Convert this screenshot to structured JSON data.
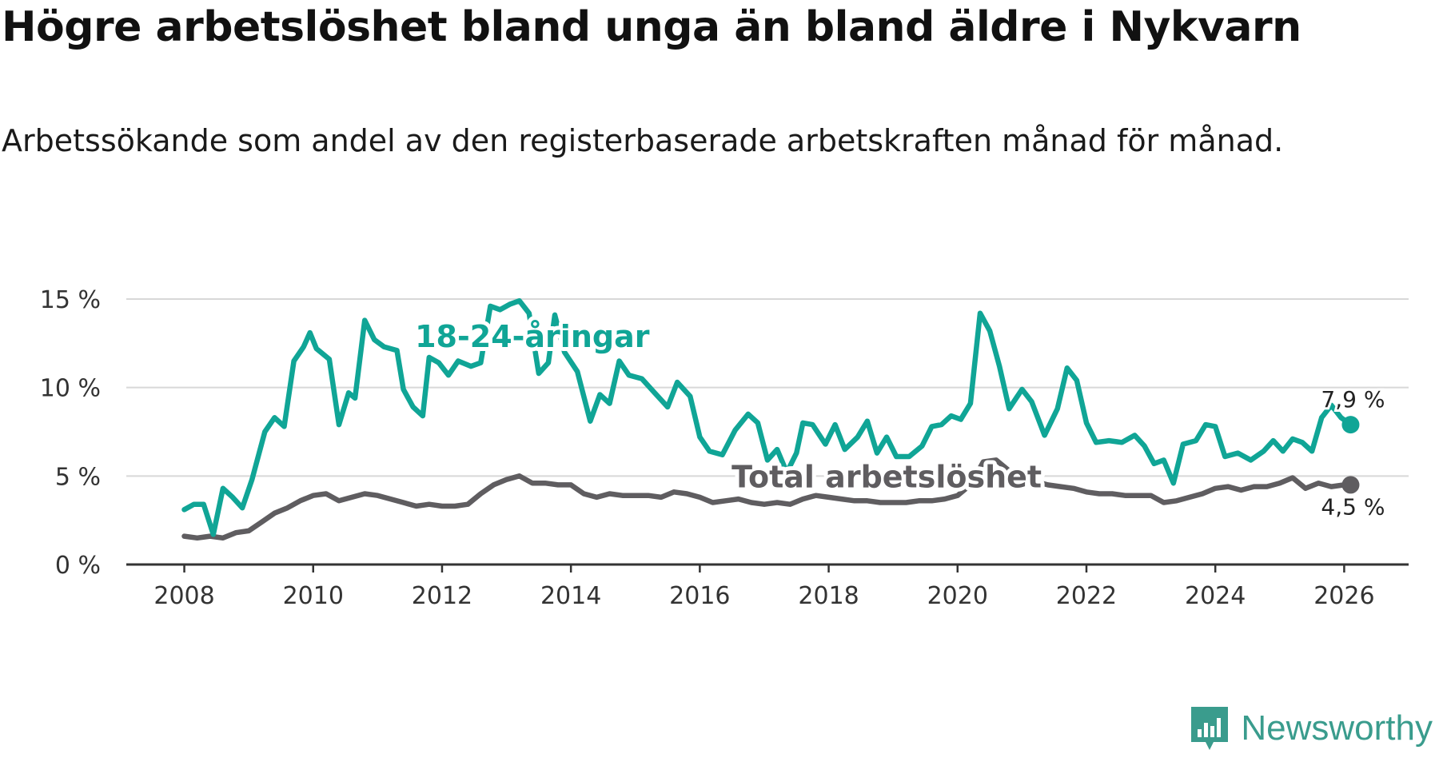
{
  "title": "Högre arbetslöshet bland unga än bland äldre i Nykvarn",
  "subtitle": "Arbetssökande som andel av den registerbaserade arbetskraften månad för månad.",
  "brand": {
    "name": "Newsworthy",
    "icon": "newsworthy-logo-icon",
    "color": "#3a9c8d"
  },
  "chart_data": {
    "type": "line",
    "title": "Högre arbetslöshet bland unga än bland äldre i Nykvarn",
    "xlabel": "",
    "ylabel": "",
    "xlim": [
      2007.1,
      2027.0
    ],
    "ylim": [
      0,
      15
    ],
    "grid": true,
    "x_ticks": [
      2008,
      2010,
      2012,
      2014,
      2016,
      2018,
      2020,
      2022,
      2024,
      2026
    ],
    "x_tick_labels": [
      "2008",
      "2010",
      "2012",
      "2014",
      "2016",
      "2018",
      "2020",
      "2022",
      "2024",
      "2026"
    ],
    "y_ticks": [
      0,
      5,
      10,
      15
    ],
    "y_tick_labels": [
      "0 %",
      "5 %",
      "10 %",
      "15 %"
    ],
    "series": [
      {
        "name": "18-24-åringar",
        "color": "#10a596",
        "label_at": [
          2013.4,
          12.3
        ],
        "end_label": "7,9 %",
        "points": [
          [
            2008.0,
            3.1
          ],
          [
            2008.15,
            3.4
          ],
          [
            2008.3,
            3.4
          ],
          [
            2008.45,
            1.7
          ],
          [
            2008.6,
            4.3
          ],
          [
            2008.75,
            3.8
          ],
          [
            2008.9,
            3.2
          ],
          [
            2009.05,
            4.8
          ],
          [
            2009.25,
            7.5
          ],
          [
            2009.4,
            8.3
          ],
          [
            2009.55,
            7.8
          ],
          [
            2009.7,
            11.5
          ],
          [
            2009.85,
            12.3
          ],
          [
            2009.95,
            13.1
          ],
          [
            2010.05,
            12.2
          ],
          [
            2010.25,
            11.6
          ],
          [
            2010.4,
            7.9
          ],
          [
            2010.55,
            9.7
          ],
          [
            2010.65,
            9.4
          ],
          [
            2010.8,
            13.8
          ],
          [
            2010.95,
            12.7
          ],
          [
            2011.1,
            12.3
          ],
          [
            2011.3,
            12.1
          ],
          [
            2011.4,
            9.9
          ],
          [
            2011.55,
            8.9
          ],
          [
            2011.7,
            8.4
          ],
          [
            2011.8,
            11.7
          ],
          [
            2011.95,
            11.4
          ],
          [
            2012.1,
            10.7
          ],
          [
            2012.25,
            11.5
          ],
          [
            2012.45,
            11.2
          ],
          [
            2012.6,
            11.4
          ],
          [
            2012.75,
            14.6
          ],
          [
            2012.9,
            14.4
          ],
          [
            2013.05,
            14.7
          ],
          [
            2013.2,
            14.9
          ],
          [
            2013.35,
            14.2
          ],
          [
            2013.5,
            10.8
          ],
          [
            2013.65,
            11.4
          ],
          [
            2013.75,
            14.1
          ],
          [
            2013.9,
            12.0
          ],
          [
            2014.1,
            10.9
          ],
          [
            2014.3,
            8.1
          ],
          [
            2014.45,
            9.6
          ],
          [
            2014.6,
            9.1
          ],
          [
            2014.75,
            11.5
          ],
          [
            2014.9,
            10.7
          ],
          [
            2015.1,
            10.5
          ],
          [
            2015.3,
            9.7
          ],
          [
            2015.5,
            8.9
          ],
          [
            2015.65,
            10.3
          ],
          [
            2015.85,
            9.5
          ],
          [
            2016.0,
            7.2
          ],
          [
            2016.15,
            6.4
          ],
          [
            2016.35,
            6.2
          ],
          [
            2016.55,
            7.6
          ],
          [
            2016.75,
            8.5
          ],
          [
            2016.9,
            8.0
          ],
          [
            2017.05,
            5.9
          ],
          [
            2017.2,
            6.5
          ],
          [
            2017.35,
            5.2
          ],
          [
            2017.5,
            6.3
          ],
          [
            2017.6,
            8.0
          ],
          [
            2017.75,
            7.9
          ],
          [
            2017.95,
            6.8
          ],
          [
            2018.1,
            7.9
          ],
          [
            2018.25,
            6.5
          ],
          [
            2018.45,
            7.2
          ],
          [
            2018.6,
            8.1
          ],
          [
            2018.75,
            6.3
          ],
          [
            2018.9,
            7.2
          ],
          [
            2019.05,
            6.1
          ],
          [
            2019.25,
            6.1
          ],
          [
            2019.45,
            6.7
          ],
          [
            2019.6,
            7.8
          ],
          [
            2019.75,
            7.9
          ],
          [
            2019.9,
            8.4
          ],
          [
            2020.05,
            8.2
          ],
          [
            2020.2,
            9.1
          ],
          [
            2020.35,
            14.2
          ],
          [
            2020.5,
            13.2
          ],
          [
            2020.65,
            11.2
          ],
          [
            2020.8,
            8.8
          ],
          [
            2021.0,
            9.9
          ],
          [
            2021.15,
            9.2
          ],
          [
            2021.35,
            7.3
          ],
          [
            2021.55,
            8.8
          ],
          [
            2021.7,
            11.1
          ],
          [
            2021.85,
            10.4
          ],
          [
            2022.0,
            8.0
          ],
          [
            2022.15,
            6.9
          ],
          [
            2022.35,
            7.0
          ],
          [
            2022.55,
            6.9
          ],
          [
            2022.75,
            7.3
          ],
          [
            2022.9,
            6.7
          ],
          [
            2023.05,
            5.7
          ],
          [
            2023.2,
            5.9
          ],
          [
            2023.35,
            4.6
          ],
          [
            2023.5,
            6.8
          ],
          [
            2023.7,
            7.0
          ],
          [
            2023.85,
            7.9
          ],
          [
            2024.0,
            7.8
          ],
          [
            2024.15,
            6.1
          ],
          [
            2024.35,
            6.3
          ],
          [
            2024.55,
            5.9
          ],
          [
            2024.75,
            6.4
          ],
          [
            2024.9,
            7.0
          ],
          [
            2025.05,
            6.4
          ],
          [
            2025.2,
            7.1
          ],
          [
            2025.35,
            6.9
          ],
          [
            2025.5,
            6.4
          ],
          [
            2025.65,
            8.3
          ],
          [
            2025.8,
            9.0
          ],
          [
            2025.95,
            8.3
          ],
          [
            2026.1,
            7.9
          ]
        ]
      },
      {
        "name": "Total arbetslöshet",
        "color": "#5f5d60",
        "label_at": [
          2018.9,
          4.35
        ],
        "end_label": "4,5 %",
        "points": [
          [
            2008.0,
            1.6
          ],
          [
            2008.2,
            1.5
          ],
          [
            2008.4,
            1.6
          ],
          [
            2008.6,
            1.5
          ],
          [
            2008.8,
            1.8
          ],
          [
            2009.0,
            1.9
          ],
          [
            2009.2,
            2.4
          ],
          [
            2009.4,
            2.9
          ],
          [
            2009.6,
            3.2
          ],
          [
            2009.8,
            3.6
          ],
          [
            2010.0,
            3.9
          ],
          [
            2010.2,
            4.0
          ],
          [
            2010.4,
            3.6
          ],
          [
            2010.6,
            3.8
          ],
          [
            2010.8,
            4.0
          ],
          [
            2011.0,
            3.9
          ],
          [
            2011.2,
            3.7
          ],
          [
            2011.4,
            3.5
          ],
          [
            2011.6,
            3.3
          ],
          [
            2011.8,
            3.4
          ],
          [
            2012.0,
            3.3
          ],
          [
            2012.2,
            3.3
          ],
          [
            2012.4,
            3.4
          ],
          [
            2012.6,
            4.0
          ],
          [
            2012.8,
            4.5
          ],
          [
            2013.0,
            4.8
          ],
          [
            2013.2,
            5.0
          ],
          [
            2013.4,
            4.6
          ],
          [
            2013.6,
            4.6
          ],
          [
            2013.8,
            4.5
          ],
          [
            2014.0,
            4.5
          ],
          [
            2014.2,
            4.0
          ],
          [
            2014.4,
            3.8
          ],
          [
            2014.6,
            4.0
          ],
          [
            2014.8,
            3.9
          ],
          [
            2015.0,
            3.9
          ],
          [
            2015.2,
            3.9
          ],
          [
            2015.4,
            3.8
          ],
          [
            2015.6,
            4.1
          ],
          [
            2015.8,
            4.0
          ],
          [
            2016.0,
            3.8
          ],
          [
            2016.2,
            3.5
          ],
          [
            2016.4,
            3.6
          ],
          [
            2016.6,
            3.7
          ],
          [
            2016.8,
            3.5
          ],
          [
            2017.0,
            3.4
          ],
          [
            2017.2,
            3.5
          ],
          [
            2017.4,
            3.4
          ],
          [
            2017.6,
            3.7
          ],
          [
            2017.8,
            3.9
          ],
          [
            2018.0,
            3.8
          ],
          [
            2018.2,
            3.7
          ],
          [
            2018.4,
            3.6
          ],
          [
            2018.6,
            3.6
          ],
          [
            2018.8,
            3.5
          ],
          [
            2019.0,
            3.5
          ],
          [
            2019.2,
            3.5
          ],
          [
            2019.4,
            3.6
          ],
          [
            2019.6,
            3.6
          ],
          [
            2019.8,
            3.7
          ],
          [
            2020.0,
            3.9
          ],
          [
            2020.2,
            4.5
          ],
          [
            2020.4,
            5.8
          ],
          [
            2020.6,
            5.9
          ],
          [
            2020.8,
            5.3
          ],
          [
            2021.0,
            4.9
          ],
          [
            2021.2,
            4.7
          ],
          [
            2021.4,
            4.5
          ],
          [
            2021.6,
            4.4
          ],
          [
            2021.8,
            4.3
          ],
          [
            2022.0,
            4.1
          ],
          [
            2022.2,
            4.0
          ],
          [
            2022.4,
            4.0
          ],
          [
            2022.6,
            3.9
          ],
          [
            2022.8,
            3.9
          ],
          [
            2023.0,
            3.9
          ],
          [
            2023.2,
            3.5
          ],
          [
            2023.4,
            3.6
          ],
          [
            2023.6,
            3.8
          ],
          [
            2023.8,
            4.0
          ],
          [
            2024.0,
            4.3
          ],
          [
            2024.2,
            4.4
          ],
          [
            2024.4,
            4.2
          ],
          [
            2024.6,
            4.4
          ],
          [
            2024.8,
            4.4
          ],
          [
            2025.0,
            4.6
          ],
          [
            2025.2,
            4.9
          ],
          [
            2025.4,
            4.3
          ],
          [
            2025.6,
            4.6
          ],
          [
            2025.8,
            4.4
          ],
          [
            2026.0,
            4.5
          ],
          [
            2026.1,
            4.5
          ]
        ]
      }
    ]
  }
}
